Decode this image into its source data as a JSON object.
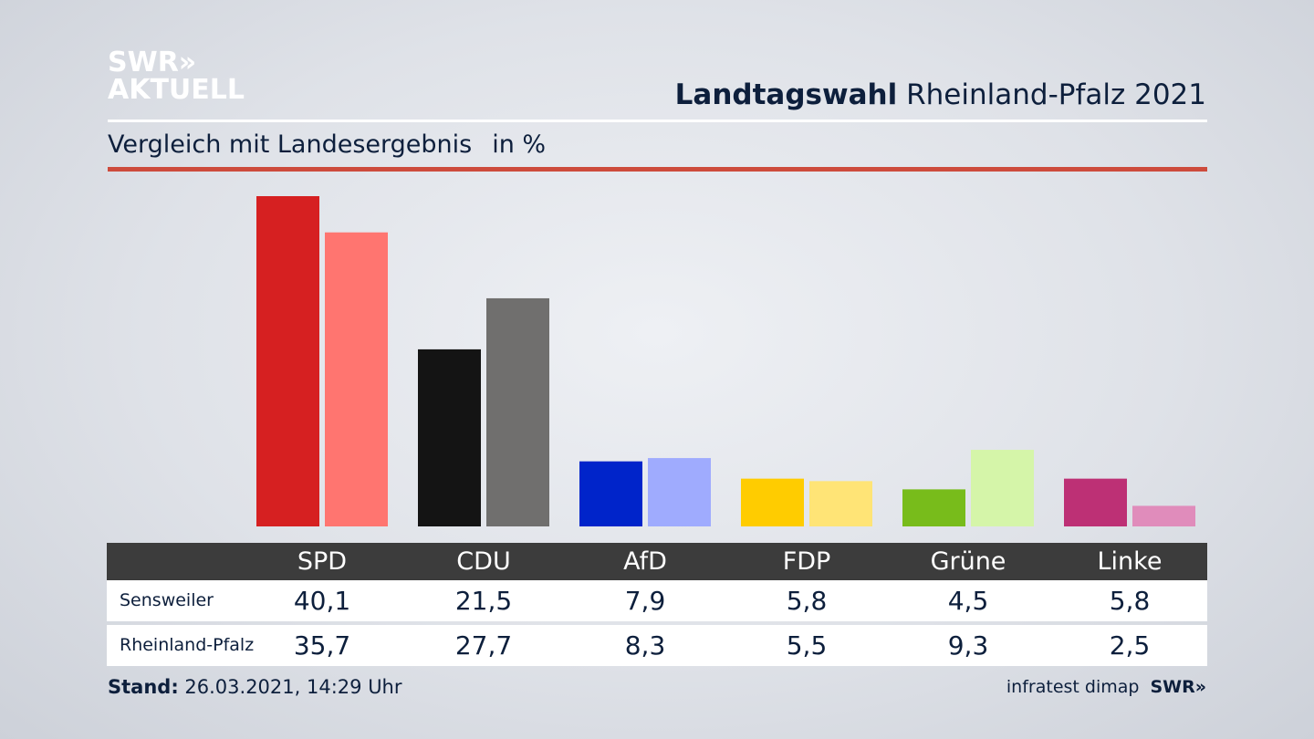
{
  "header": {
    "logo_line1": "SWR»",
    "logo_line2": "AKTUELL",
    "title_bold": "Landtagswahl",
    "title_rest": "Rheinland-Pfalz 2021",
    "subtitle": "Vergleich mit Landesergebnis",
    "unit": "in %"
  },
  "chart_data": {
    "type": "bar",
    "categories": [
      "SPD",
      "CDU",
      "AfD",
      "FDP",
      "Grüne",
      "Linke"
    ],
    "series": [
      {
        "name": "Sensweiler",
        "values": [
          40.1,
          21.5,
          7.9,
          5.8,
          4.5,
          5.8
        ]
      },
      {
        "name": "Rheinland-Pfalz",
        "values": [
          35.7,
          27.7,
          8.3,
          5.5,
          9.3,
          2.5
        ]
      }
    ],
    "colors": [
      [
        "#d62021",
        "#ff7570"
      ],
      [
        "#141414",
        "#706f6e"
      ],
      [
        "#0024ca",
        "#9fabfe"
      ],
      [
        "#ffcc00",
        "#ffe476"
      ],
      [
        "#78bc1b",
        "#d5f5a9"
      ],
      [
        "#bd3075",
        "#e08cbb"
      ]
    ],
    "ylim": [
      0,
      40.1
    ]
  },
  "table": {
    "rows": [
      "Sensweiler",
      "Rheinland-Pfalz"
    ]
  },
  "footer": {
    "stand_label": "Stand:",
    "stand_value": "26.03.2021, 14:29 Uhr",
    "source": "infratest dimap",
    "source_logo": "SWR»"
  }
}
